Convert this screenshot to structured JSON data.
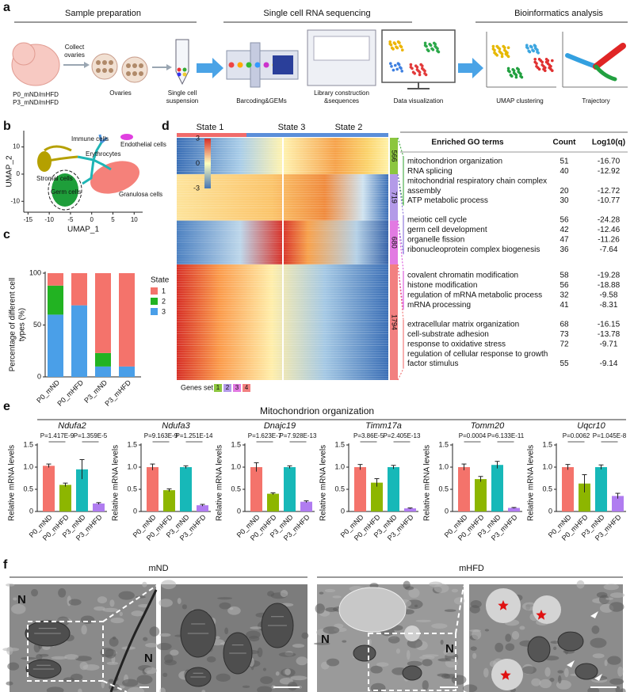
{
  "panel_labels": [
    "a",
    "b",
    "c",
    "d",
    "e",
    "f"
  ],
  "sample_prep": {
    "header": "Sample preparation",
    "collect": [
      "Collect",
      "ovaries"
    ],
    "mice": [
      "P0_mND/mHFD",
      "P3_mND/mHFD"
    ],
    "ovaries": "Ovaries",
    "suspension": [
      "Single cell",
      "suspension"
    ]
  },
  "sequencing": {
    "header": "Single cell RNA sequencing",
    "barcoding": "Barcoding&GEMs",
    "library": [
      "Library construction",
      "&sequences"
    ],
    "visualization": "Data visualization"
  },
  "bioinformatics": {
    "header": "Bioinformatics analysis",
    "umap": "UMAP clustering",
    "trajectory": "Trajectory"
  },
  "heatmap": {
    "states": [
      {
        "name": "State 1",
        "color": "#f06b6b"
      },
      {
        "name": "State 3",
        "color": "#5b8fd9"
      },
      {
        "name": "State 2",
        "color": "#2ca02c"
      }
    ],
    "scale": [
      3,
      0,
      -3
    ],
    "gene_sets": [
      {
        "size": 566,
        "color": "#8cc63f"
      },
      {
        "size": 719,
        "color": "#b39ae8"
      },
      {
        "size": 680,
        "color": "#e27ae2"
      },
      {
        "size": 1794,
        "color": "#f28080"
      }
    ],
    "legend_title": "Genes set",
    "legend": [
      "1",
      "2",
      "3",
      "4"
    ]
  },
  "go_table": {
    "headers": [
      "Enriched GO terms",
      "Count",
      "Log10(q)"
    ],
    "groups": [
      {
        "color": "#2ca02c",
        "rows": [
          {
            "term": [
              "mitochondrion organization"
            ],
            "count": 51,
            "q": "-16.70"
          },
          {
            "term": [
              "RNA splicing"
            ],
            "count": 40,
            "q": "-12.92"
          },
          {
            "term": [
              "mitochondrial respiratory chain complex",
              "assembly"
            ],
            "count": 20,
            "q": "-12.72"
          },
          {
            "term": [
              "ATP metabolic process"
            ],
            "count": 30,
            "q": "-10.77"
          }
        ]
      },
      {
        "color": "#7b5fd6",
        "rows": [
          {
            "term": [
              "meiotic cell cycle"
            ],
            "count": 56,
            "q": "-24.28"
          },
          {
            "term": [
              "germ cell development"
            ],
            "count": 42,
            "q": "-12.46"
          },
          {
            "term": [
              "organelle fission"
            ],
            "count": 47,
            "q": "-11.26"
          },
          {
            "term": [
              "ribonucleoprotein complex biogenesis"
            ],
            "count": 36,
            "q": "-7.64"
          }
        ]
      },
      {
        "color": "#d63fd6",
        "rows": [
          {
            "term": [
              "covalent chromatin modification"
            ],
            "count": 58,
            "q": "-19.28"
          },
          {
            "term": [
              "histone modification"
            ],
            "count": 56,
            "q": "-18.88"
          },
          {
            "term": [
              "regulation of mRNA metabolic process"
            ],
            "count": 32,
            "q": "-9.58"
          },
          {
            "term": [
              "mRNA processing"
            ],
            "count": 41,
            "q": "-8.31"
          }
        ]
      },
      {
        "color": "#f06060",
        "rows": [
          {
            "term": [
              "extracellular matrix organization"
            ],
            "count": 68,
            "q": "-16.15"
          },
          {
            "term": [
              "cell-substrate adhesion"
            ],
            "count": 73,
            "q": "-13.78"
          },
          {
            "term": [
              "response to oxidative stress"
            ],
            "count": 72,
            "q": "-9.71"
          },
          {
            "term": [
              "regulation of cellular response to growth",
              "factor stimulus"
            ],
            "count": 55,
            "q": "-9.14"
          }
        ]
      }
    ]
  },
  "mito_title": "Mitochondrion organization",
  "tem": {
    "groups": [
      "mND",
      "mHFD"
    ],
    "nucleus": "N"
  },
  "chart_data": [
    {
      "type": "umap",
      "xlabel": "UMAP_1",
      "ylabel": "UMAP_2",
      "xlim": [
        -16,
        12
      ],
      "xticks": [
        -15,
        -10,
        -5,
        0,
        5,
        10
      ],
      "ylim": [
        -14,
        16
      ],
      "yticks": [
        -10,
        0,
        10
      ],
      "clusters": [
        {
          "name": "Immune cells",
          "color": "#4a90d9"
        },
        {
          "name": "Endothelial cells",
          "color": "#e040e0"
        },
        {
          "name": "Erythrocytes",
          "color": "#1fb5b5"
        },
        {
          "name": "Stromal cells",
          "color": "#b5a000"
        },
        {
          "name": "Granulosa cells",
          "color": "#f4736b"
        },
        {
          "name": "Germ cells",
          "color": "#1e9e3a"
        }
      ]
    },
    {
      "type": "stacked_bar",
      "ylabel": [
        "Percentage of different cell",
        "types (%)"
      ],
      "categories": [
        "P0_mND",
        "P0_mHFD",
        "P3_mND",
        "P3_mHFD"
      ],
      "legend_title": "State",
      "series": [
        {
          "name": "1",
          "color": "#f4736b",
          "values": [
            12,
            31,
            77,
            90
          ]
        },
        {
          "name": "2",
          "color": "#22b322",
          "values": [
            28,
            0,
            13,
            0
          ]
        },
        {
          "name": "3",
          "color": "#4a9fe8",
          "values": [
            60,
            69,
            10,
            10
          ]
        }
      ],
      "ylim": [
        0,
        100
      ],
      "yticks": [
        0,
        50,
        100
      ]
    },
    {
      "type": "bar",
      "title": "Ndufa2",
      "ylabel": "Relative mRNA levels",
      "categories": [
        "P0_mND",
        "P0_mHFD",
        "P3_mND",
        "P3_mHFD"
      ],
      "colors": [
        "#f4736b",
        "#8db600",
        "#17b8b8",
        "#b07cf0"
      ],
      "values": [
        1.03,
        0.6,
        0.95,
        0.18
      ],
      "errors": [
        0.04,
        0.04,
        0.22,
        0.02
      ],
      "ylim": [
        0,
        1.5
      ],
      "yticks": [
        0,
        0.5,
        {
          "value": 1,
          "label": "1.0"
        },
        1.5
      ],
      "annotations": [
        "P=1.417E-9",
        "P=1.359E-5"
      ]
    },
    {
      "type": "bar",
      "title": "Ndufa3",
      "ylabel": "Relative mRNA levels",
      "categories": [
        "P0_mND",
        "P0_mHFD",
        "P3_mND",
        "P3_mHFD"
      ],
      "colors": [
        "#f4736b",
        "#8db600",
        "#17b8b8",
        "#b07cf0"
      ],
      "values": [
        1.0,
        0.48,
        1.0,
        0.14
      ],
      "errors": [
        0.07,
        0.03,
        0.03,
        0.02
      ],
      "ylim": [
        0,
        1.5
      ],
      "yticks": [
        0,
        0.5,
        {
          "value": 1,
          "label": "1.0"
        },
        1.5
      ],
      "annotations": [
        "P=9.163E-9",
        "P=1.251E-14"
      ]
    },
    {
      "type": "bar",
      "title": "Dnajc19",
      "ylabel": "Relative mRNA levels",
      "categories": [
        "P0_mND",
        "P0_mHFD",
        "P3_mND",
        "P3_mHFD"
      ],
      "colors": [
        "#f4736b",
        "#8db600",
        "#17b8b8",
        "#b07cf0"
      ],
      "values": [
        1.0,
        0.4,
        1.0,
        0.22
      ],
      "errors": [
        0.1,
        0.02,
        0.03,
        0.02
      ],
      "ylim": [
        0,
        1.5
      ],
      "yticks": [
        0,
        0.5,
        {
          "value": 1,
          "label": "1.0"
        },
        1.5
      ],
      "annotations": [
        "P=1.623E-7",
        "P=7.928E-13"
      ]
    },
    {
      "type": "bar",
      "title": "Timm17a",
      "ylabel": "Relative mRNA levels",
      "categories": [
        "P0_mND",
        "P0_mHFD",
        "P3_mND",
        "P3_mHFD"
      ],
      "colors": [
        "#f4736b",
        "#8db600",
        "#17b8b8",
        "#b07cf0"
      ],
      "values": [
        1.0,
        0.65,
        1.0,
        0.07
      ],
      "errors": [
        0.06,
        0.09,
        0.04,
        0.01
      ],
      "ylim": [
        0,
        1.5
      ],
      "yticks": [
        0,
        0.5,
        {
          "value": 1,
          "label": "1.0"
        },
        1.5
      ],
      "annotations": [
        "P=3.86E-5",
        "P=2.405E-13"
      ]
    },
    {
      "type": "bar",
      "title": "Tomm20",
      "ylabel": "Relative mRNA levels",
      "categories": [
        "P0_mND",
        "P0_mHFD",
        "P3_mND",
        "P3_mHFD"
      ],
      "colors": [
        "#f4736b",
        "#8db600",
        "#17b8b8",
        "#b07cf0"
      ],
      "values": [
        1.0,
        0.73,
        1.05,
        0.08
      ],
      "errors": [
        0.07,
        0.06,
        0.08,
        0.01
      ],
      "ylim": [
        0,
        1.5
      ],
      "yticks": [
        0,
        0.5,
        {
          "value": 1,
          "label": "1.0"
        },
        1.5
      ],
      "annotations": [
        "P=0.0004",
        "P=6.133E-11"
      ]
    },
    {
      "type": "bar",
      "title": "Uqcr10",
      "ylabel": "Relative mRNA levels",
      "categories": [
        "P0_mND",
        "P0_mHFD",
        "P3_mND",
        "P3_mHFD"
      ],
      "colors": [
        "#f4736b",
        "#8db600",
        "#17b8b8",
        "#b07cf0"
      ],
      "values": [
        1.0,
        0.63,
        1.0,
        0.35
      ],
      "errors": [
        0.06,
        0.2,
        0.05,
        0.06
      ],
      "ylim": [
        0,
        1.5
      ],
      "yticks": [
        0,
        0.5,
        {
          "value": 1,
          "label": "1.0"
        },
        1.5
      ],
      "annotations": [
        "P=0.0062",
        "P=1.045E-8"
      ]
    }
  ]
}
